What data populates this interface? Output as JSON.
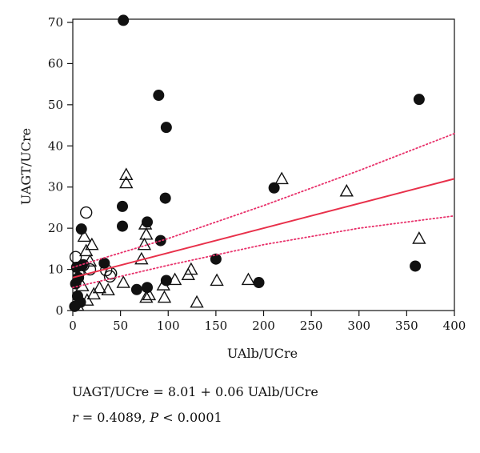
{
  "chart_data": {
    "type": "scatter",
    "xlabel": "UAlb/UCre",
    "ylabel": "UAGT/UCre",
    "xlim": [
      0,
      400
    ],
    "ylim": [
      0,
      70
    ],
    "x_ticks": [
      0,
      50,
      100,
      150,
      200,
      250,
      300,
      350,
      400
    ],
    "y_ticks": [
      0,
      10,
      20,
      30,
      40,
      50,
      60,
      70
    ],
    "grid": false,
    "legend": "none",
    "series": [
      {
        "marker": "filled-circle",
        "points": [
          [
            53,
            70.5
          ],
          [
            90,
            52.3
          ],
          [
            363,
            51.3
          ],
          [
            98,
            44.5
          ],
          [
            211,
            29.8
          ],
          [
            97,
            27.3
          ],
          [
            52,
            25.3
          ],
          [
            78,
            21.5
          ],
          [
            52,
            20.5
          ],
          [
            9,
            19.8
          ],
          [
            92,
            17.0
          ],
          [
            150,
            12.5
          ],
          [
            33,
            11.5
          ],
          [
            4,
            10.5
          ],
          [
            10,
            11.0
          ],
          [
            359,
            10.8
          ],
          [
            98,
            7.3
          ],
          [
            195,
            6.8
          ],
          [
            78,
            5.6
          ],
          [
            67,
            5.1
          ],
          [
            3,
            6.5
          ],
          [
            5,
            3.5
          ],
          [
            8,
            2.0
          ],
          [
            2,
            1.0
          ],
          [
            6,
            8.0
          ]
        ]
      },
      {
        "marker": "open-triangle",
        "points": [
          [
            56,
            33.0
          ],
          [
            56,
            31.0
          ],
          [
            219,
            32.0
          ],
          [
            287,
            29.0
          ],
          [
            76,
            21.0
          ],
          [
            77,
            18.5
          ],
          [
            75,
            16.0
          ],
          [
            72,
            12.5
          ],
          [
            363,
            17.5
          ],
          [
            12,
            18.0
          ],
          [
            20,
            16.0
          ],
          [
            14,
            14.5
          ],
          [
            18,
            12.0
          ],
          [
            124,
            10.0
          ],
          [
            121,
            8.7
          ],
          [
            107,
            7.5
          ],
          [
            151,
            7.3
          ],
          [
            184,
            7.5
          ],
          [
            53,
            6.8
          ],
          [
            95,
            6.2
          ],
          [
            28,
            5.5
          ],
          [
            37,
            5.0
          ],
          [
            22,
            4.0
          ],
          [
            80,
            3.8
          ],
          [
            77,
            3.2
          ],
          [
            96,
            3.2
          ],
          [
            130,
            2.0
          ],
          [
            10,
            6.0
          ],
          [
            15,
            2.5
          ],
          [
            5,
            1.2
          ]
        ]
      },
      {
        "marker": "open-circle",
        "points": [
          [
            14,
            23.8
          ],
          [
            11,
            11.0
          ],
          [
            35,
            9.8
          ],
          [
            40,
            9.0
          ],
          [
            39,
            8.3
          ],
          [
            3,
            13.0
          ],
          [
            18,
            10.0
          ],
          [
            6,
            9.0
          ]
        ]
      }
    ],
    "regression": {
      "intercept": 8.01,
      "slope": 0.06,
      "color": "#e8304a"
    },
    "confidence_band": {
      "upper_x": [
        0,
        100,
        200,
        300,
        400
      ],
      "upper_y": [
        10.5,
        17.5,
        25.5,
        34.0,
        43.0
      ],
      "lower_x": [
        0,
        100,
        200,
        300,
        400
      ],
      "lower_y": [
        5.6,
        11.0,
        16.0,
        20.0,
        23.0
      ],
      "color": "#e8306a"
    }
  },
  "caption": {
    "equation": "UAGT/UCre = 8.01 + 0.06 UAlb/UCre",
    "r_symbol": "r",
    "r_text": " = 0.4089, ",
    "p_symbol": "P",
    "p_text": " < 0.0001"
  }
}
